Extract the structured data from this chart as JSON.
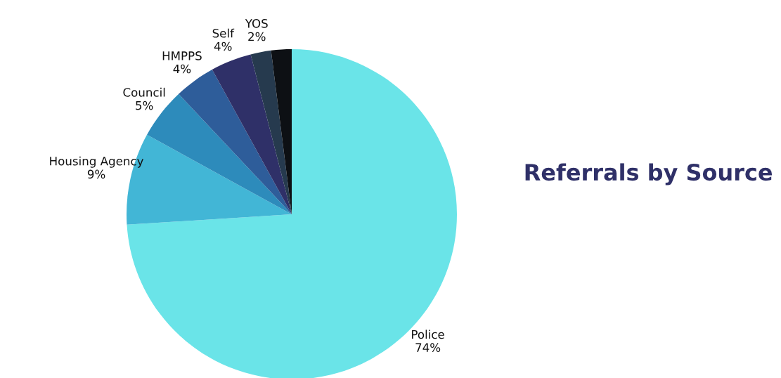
{
  "chart_data": {
    "type": "pie",
    "title": "Referrals by Source",
    "categories": [
      "Police",
      "Housing Agency",
      "Council",
      "HMPPS",
      "Self",
      "YOS",
      null
    ],
    "values": [
      74,
      9,
      5,
      4,
      4,
      2,
      2
    ],
    "value_labels": [
      "74%",
      "9%",
      "5%",
      "4%",
      "4%",
      "2%",
      null
    ],
    "colors": [
      "#6ae4e8",
      "#42b6d6",
      "#2d8bbb",
      "#2e5d9a",
      "#2f3068",
      "#263a4e",
      "#0d1014"
    ],
    "legend": false
  }
}
